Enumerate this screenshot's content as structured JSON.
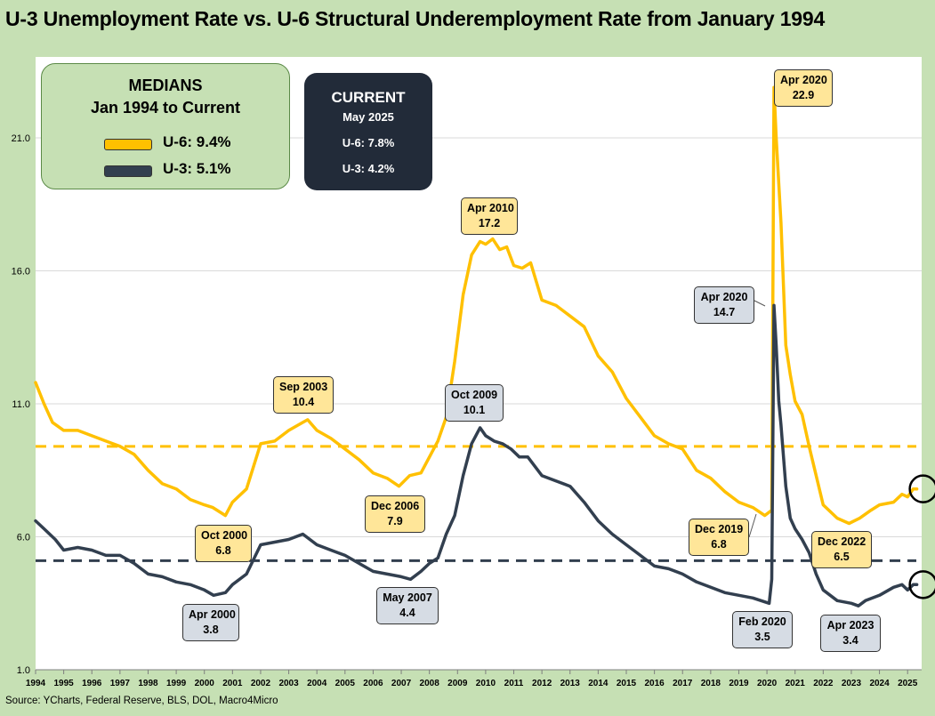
{
  "title": "U-3 Unemployment Rate vs. U-6 Structural Underemployment Rate from January 1994",
  "source": "Source: YCharts, Federal Reserve, BLS, DOL, Macro4Micro",
  "medians": {
    "title": "MEDIANS",
    "subtitle": "Jan 1994 to Current",
    "u6_label": "U-6: 9.4%",
    "u3_label": "U-3: 5.1%"
  },
  "current": {
    "title": "CURRENT",
    "date": "May 2025",
    "u6": "U-6: 7.8%",
    "u3": "U-3: 4.2%"
  },
  "annotations": [
    {
      "date": "Apr 2020",
      "value": "22.9",
      "series": "U-6"
    },
    {
      "date": "Apr 2010",
      "value": "17.2",
      "series": "U-6"
    },
    {
      "date": "Apr 2020",
      "value": "14.7",
      "series": "U-3"
    },
    {
      "date": "Sep 2003",
      "value": "10.4",
      "series": "U-6"
    },
    {
      "date": "Oct 2009",
      "value": "10.1",
      "series": "U-3"
    },
    {
      "date": "Dec 2006",
      "value": "7.9",
      "series": "U-6"
    },
    {
      "date": "Dec 2019",
      "value": "6.8",
      "series": "U-6"
    },
    {
      "date": "Oct 2000",
      "value": "6.8",
      "series": "U-6"
    },
    {
      "date": "Dec 2022",
      "value": "6.5",
      "series": "U-6"
    },
    {
      "date": "May 2007",
      "value": "4.4",
      "series": "U-3"
    },
    {
      "date": "Apr 2000",
      "value": "3.8",
      "series": "U-3"
    },
    {
      "date": "Feb 2020",
      "value": "3.5",
      "series": "U-3"
    },
    {
      "date": "Apr 2023",
      "value": "3.4",
      "series": "U-3"
    }
  ],
  "colors": {
    "u6": "#ffc000",
    "u3": "#323f4f",
    "frame": "#c6e0b4",
    "grid": "#d9d9d9"
  },
  "chart_data": {
    "type": "line",
    "title": "U-3 Unemployment Rate vs. U-6 Structural Underemployment Rate from January 1994",
    "xlabel": "",
    "ylabel": "",
    "ylim": [
      1.0,
      23.5
    ],
    "xlim": [
      1994.0,
      2025.5
    ],
    "yticks": [
      "1.0",
      "6.0",
      "11.0",
      "16.0",
      "21.0"
    ],
    "xticks": [
      "1994",
      "1995",
      "1996",
      "1997",
      "1998",
      "1999",
      "2000",
      "2001",
      "2002",
      "2003",
      "2004",
      "2005",
      "2006",
      "2007",
      "2008",
      "2009",
      "2010",
      "2011",
      "2012",
      "2013",
      "2014",
      "2015",
      "2016",
      "2017",
      "2018",
      "2019",
      "2020",
      "2021",
      "2022",
      "2023",
      "2024",
      "2025"
    ],
    "grid": true,
    "medians": {
      "U-6": 9.4,
      "U-3": 5.1
    },
    "series": [
      {
        "name": "U-6",
        "x": [
          1994.0,
          1994.3,
          1994.6,
          1995.0,
          1995.5,
          1996.0,
          1996.5,
          1997.0,
          1997.5,
          1998.0,
          1998.5,
          1999.0,
          1999.5,
          2000.0,
          2000.3,
          2000.75,
          2001.0,
          2001.5,
          2002.0,
          2002.5,
          2003.0,
          2003.5,
          2003.67,
          2004.0,
          2004.5,
          2005.0,
          2005.5,
          2006.0,
          2006.5,
          2006.92,
          2007.3,
          2007.7,
          2008.0,
          2008.3,
          2008.6,
          2008.9,
          2009.2,
          2009.5,
          2009.8,
          2010.0,
          2010.25,
          2010.5,
          2010.75,
          2011.0,
          2011.3,
          2011.6,
          2012.0,
          2012.5,
          2013.0,
          2013.5,
          2014.0,
          2014.5,
          2015.0,
          2015.5,
          2016.0,
          2016.5,
          2017.0,
          2017.5,
          2018.0,
          2018.5,
          2019.0,
          2019.5,
          2019.92,
          2020.17,
          2020.25,
          2020.33,
          2020.5,
          2020.67,
          2020.83,
          2021.0,
          2021.25,
          2021.5,
          2021.75,
          2022.0,
          2022.5,
          2022.92,
          2023.3,
          2023.7,
          2024.0,
          2024.5,
          2024.8,
          2025.0,
          2025.2,
          2025.33
        ],
        "values": [
          11.8,
          11.0,
          10.3,
          10.0,
          10.0,
          9.8,
          9.6,
          9.4,
          9.1,
          8.5,
          8.0,
          7.8,
          7.4,
          7.2,
          7.1,
          6.8,
          7.3,
          7.8,
          9.5,
          9.6,
          10.0,
          10.3,
          10.4,
          10.0,
          9.7,
          9.3,
          8.9,
          8.4,
          8.2,
          7.9,
          8.3,
          8.4,
          9.0,
          9.6,
          10.5,
          12.6,
          15.1,
          16.6,
          17.1,
          17.0,
          17.2,
          16.8,
          16.9,
          16.2,
          16.1,
          16.3,
          14.9,
          14.7,
          14.3,
          13.9,
          12.8,
          12.2,
          11.2,
          10.5,
          9.8,
          9.5,
          9.3,
          8.5,
          8.2,
          7.7,
          7.3,
          7.1,
          6.8,
          7.0,
          22.9,
          21.0,
          17.8,
          13.2,
          12.1,
          11.1,
          10.6,
          9.4,
          8.3,
          7.2,
          6.7,
          6.5,
          6.7,
          7.0,
          7.2,
          7.3,
          7.6,
          7.5,
          7.8,
          7.8
        ]
      },
      {
        "name": "U-3",
        "x": [
          1994.0,
          1994.3,
          1994.7,
          1995.0,
          1995.5,
          1996.0,
          1996.5,
          1997.0,
          1997.5,
          1998.0,
          1998.5,
          1999.0,
          1999.5,
          2000.0,
          2000.33,
          2000.75,
          2001.0,
          2001.5,
          2002.0,
          2002.5,
          2003.0,
          2003.5,
          2004.0,
          2004.5,
          2005.0,
          2005.5,
          2006.0,
          2006.5,
          2007.0,
          2007.33,
          2007.7,
          2008.0,
          2008.3,
          2008.6,
          2008.9,
          2009.2,
          2009.5,
          2009.8,
          2010.0,
          2010.3,
          2010.6,
          2010.9,
          2011.2,
          2011.5,
          2012.0,
          2012.5,
          2013.0,
          2013.5,
          2014.0,
          2014.5,
          2015.0,
          2015.5,
          2016.0,
          2016.5,
          2017.0,
          2017.5,
          2018.0,
          2018.5,
          2019.0,
          2019.5,
          2020.08,
          2020.17,
          2020.25,
          2020.33,
          2020.42,
          2020.5,
          2020.67,
          2020.83,
          2021.0,
          2021.25,
          2021.5,
          2021.75,
          2022.0,
          2022.5,
          2023.0,
          2023.25,
          2023.5,
          2024.0,
          2024.5,
          2024.8,
          2025.0,
          2025.2,
          2025.33
        ],
        "values": [
          6.6,
          6.3,
          5.9,
          5.5,
          5.6,
          5.5,
          5.3,
          5.3,
          5.0,
          4.6,
          4.5,
          4.3,
          4.2,
          4.0,
          3.8,
          3.9,
          4.2,
          4.6,
          5.7,
          5.8,
          5.9,
          6.1,
          5.7,
          5.5,
          5.3,
          5.0,
          4.7,
          4.6,
          4.5,
          4.4,
          4.7,
          5.0,
          5.2,
          6.1,
          6.8,
          8.3,
          9.5,
          10.1,
          9.8,
          9.6,
          9.5,
          9.3,
          9.0,
          9.0,
          8.3,
          8.1,
          7.9,
          7.3,
          6.6,
          6.1,
          5.7,
          5.3,
          4.9,
          4.8,
          4.6,
          4.3,
          4.1,
          3.9,
          3.8,
          3.7,
          3.5,
          4.4,
          14.7,
          13.2,
          11.1,
          10.2,
          7.9,
          6.7,
          6.3,
          5.9,
          5.4,
          4.6,
          4.0,
          3.6,
          3.5,
          3.4,
          3.6,
          3.8,
          4.1,
          4.2,
          4.0,
          4.2,
          4.2
        ]
      }
    ]
  }
}
